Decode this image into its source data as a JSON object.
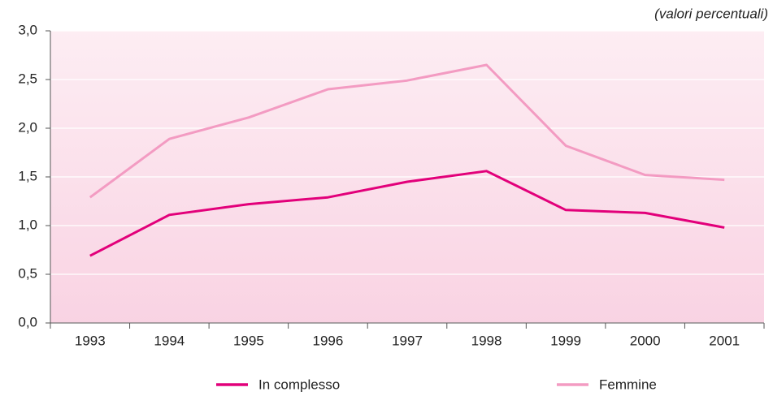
{
  "chart_data": {
    "type": "line",
    "annotation": "(valori percentuali)",
    "categories": [
      "1993",
      "1994",
      "1995",
      "1996",
      "1997",
      "1998",
      "1999",
      "2000",
      "2001"
    ],
    "series": [
      {
        "name": "In complesso",
        "color": "#e2007a",
        "values": [
          0.69,
          1.11,
          1.22,
          1.29,
          1.45,
          1.56,
          1.16,
          1.13,
          0.98
        ]
      },
      {
        "name": "Femmine",
        "color": "#f39bc2",
        "values": [
          1.29,
          1.89,
          2.11,
          2.4,
          2.49,
          2.65,
          1.82,
          1.52,
          1.47
        ]
      }
    ],
    "ylim": [
      0,
      3
    ],
    "yticks": [
      {
        "value": 0,
        "label": "0,0"
      },
      {
        "value": 0.5,
        "label": "0,5"
      },
      {
        "value": 1,
        "label": "1,0"
      },
      {
        "value": 1.5,
        "label": "1,5"
      },
      {
        "value": 2,
        "label": "2,0"
      },
      {
        "value": 2.5,
        "label": "2,5"
      },
      {
        "value": 3,
        "label": "3,0"
      }
    ],
    "grid": true,
    "legend": "bottom"
  }
}
